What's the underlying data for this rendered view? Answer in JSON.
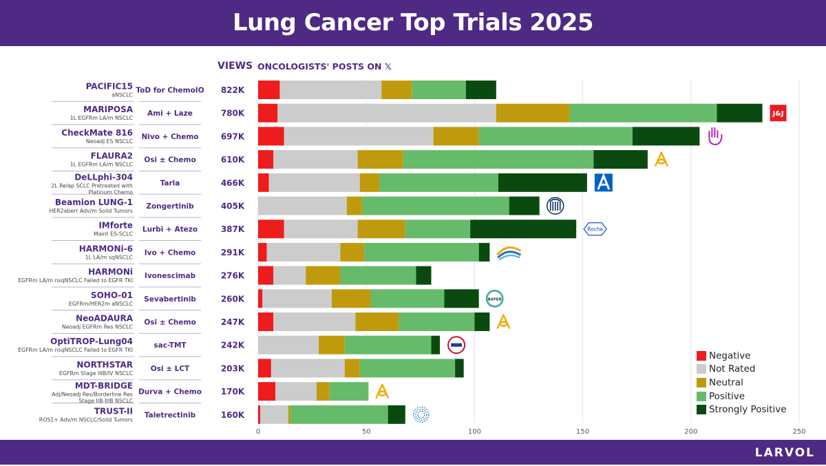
{
  "title": "Lung Cancer Top Trials 2025",
  "brand": "LARVOL",
  "headers": {
    "views": "VIEWS",
    "posts": "ONCOLOGISTS' POSTS ON",
    "platform": "𝕏"
  },
  "colors": {
    "negative": "#ee1c1c",
    "not_rated": "#cccccc",
    "neutral": "#c09a0d",
    "positive": "#66bb6a",
    "strongly_positive": "#0a4a10",
    "accent": "#4e2a84"
  },
  "chart_data": {
    "type": "bar",
    "orientation": "horizontal",
    "stacked": true,
    "title": "Lung Cancer Top Trials 2025",
    "xlabel": "ONCOLOGISTS' POSTS ON 𝕏",
    "xlim": [
      0,
      250
    ],
    "xticks": [
      0,
      50,
      100,
      150,
      200,
      250
    ],
    "grid": true,
    "legend_position": "bottom-right",
    "series_names": [
      "Negative",
      "Not Rated",
      "Neutral",
      "Positive",
      "Strongly Positive"
    ],
    "series_keys": [
      "negative",
      "not_rated",
      "neutral",
      "positive",
      "strongly_positive"
    ],
    "trials": [
      {
        "name": "PACIFIC15",
        "subtitle": [
          "aNSCLC"
        ],
        "treatment": "ToD for ChemoIO",
        "views": "822K",
        "values": [
          10,
          47,
          14,
          25,
          14
        ]
      },
      {
        "name": "MARIPOSA",
        "subtitle": [
          "1L EGFRm LA/m NSCLC"
        ],
        "treatment": "Ami + Laze",
        "views": "780K",
        "values": [
          9,
          101,
          34,
          68,
          21
        ],
        "sponsor": "jnj-logo",
        "sponsor_text": "J&J"
      },
      {
        "name": "CheckMate 816",
        "subtitle": [
          "Neoadj ES NSCLC"
        ],
        "treatment": "Nivo + Chemo",
        "views": "697K",
        "values": [
          12,
          69,
          21,
          71,
          31
        ],
        "sponsor": "bms-logo"
      },
      {
        "name": "FLAURA2",
        "subtitle": [
          "1L EGFRm LA/m NSCLC"
        ],
        "treatment": "Osi ± Chemo",
        "views": "610K",
        "values": [
          7,
          39,
          21,
          88,
          25
        ],
        "sponsor": "astrazeneca-logo"
      },
      {
        "name": "DeLLphi-304",
        "subtitle": [
          "2L Relap SCLC Pretreated with",
          "Platinum Chemo"
        ],
        "treatment": "Tarla",
        "views": "466K",
        "values": [
          5,
          42,
          9,
          55,
          41
        ],
        "sponsor": "amgen-logo"
      },
      {
        "name": "Beamion LUNG-1",
        "subtitle": [
          "HER2aberr Adv/m Solid Tumors"
        ],
        "treatment": "Zongertinib",
        "views": "405K",
        "values": [
          0,
          41,
          7,
          68,
          14
        ],
        "sponsor": "boehringer-logo"
      },
      {
        "name": "IMforte",
        "subtitle": [
          "Maint ES-SCLC"
        ],
        "treatment": "Lurbi + Atezo",
        "views": "387K",
        "values": [
          12,
          34,
          22,
          30,
          49
        ],
        "sponsor": "roche-logo",
        "sponsor_text": "Roche"
      },
      {
        "name": "HARMONi-6",
        "subtitle": [
          "1L LA/m sqNSCLC"
        ],
        "treatment": "Ivo + Chemo",
        "views": "291K",
        "values": [
          4,
          34,
          11,
          53,
          5
        ],
        "sponsor": "akeso-logo"
      },
      {
        "name": "HARMONi",
        "subtitle": [
          "EGFRm LA/m nsqNSCLC Failed to EGFR TKI"
        ],
        "treatment": "Ivonescimab",
        "views": "276K",
        "values": [
          7,
          15,
          16,
          35,
          7
        ],
        "sponsor": "summit-logo"
      },
      {
        "name": "SOHO-01",
        "subtitle": [
          "EGFRm/HER2m aNSCLC"
        ],
        "treatment": "Sevabertinib",
        "views": "260K",
        "values": [
          2,
          32,
          18,
          34,
          16
        ],
        "sponsor": "bayer-logo",
        "sponsor_text": "BAYER"
      },
      {
        "name": "NeoADAURA",
        "subtitle": [
          "Neoadj EGFRm Res NSCLC"
        ],
        "treatment": "Osi ± Chemo",
        "views": "247K",
        "values": [
          7,
          38,
          20,
          35,
          7
        ],
        "sponsor": "astrazeneca-logo"
      },
      {
        "name": "OptiTROP-Lung04",
        "subtitle": [
          "EGFRm LA/m nsqNSCLC Failed to EGFR TKI"
        ],
        "treatment": "sac-TMT",
        "views": "242K",
        "values": [
          0,
          28,
          12,
          40,
          4
        ],
        "sponsor": "kelun-logo"
      },
      {
        "name": "NORTHSTAR",
        "subtitle": [
          "EGFRm Stage IIIB/IV NSCLC"
        ],
        "treatment": "Osi ± LCT",
        "views": "203K",
        "values": [
          6,
          34,
          7,
          44,
          4
        ]
      },
      {
        "name": "MDT-BRIDGE",
        "subtitle": [
          "Adj/Neoadj Res/Borderline Res",
          "Stage IIB-IIIB NSCLC"
        ],
        "treatment": "Durva + Chemo",
        "views": "170K",
        "values": [
          8,
          19,
          6,
          18,
          0
        ],
        "sponsor": "astrazeneca-logo"
      },
      {
        "name": "TRUST-II",
        "subtitle": [
          "ROS1+ Adv/m NSCLC/Solid Tumors"
        ],
        "treatment": "Taletrectinib",
        "views": "160K",
        "values": [
          1,
          13,
          1,
          45,
          8
        ],
        "sponsor": "nuvation-logo"
      }
    ]
  }
}
